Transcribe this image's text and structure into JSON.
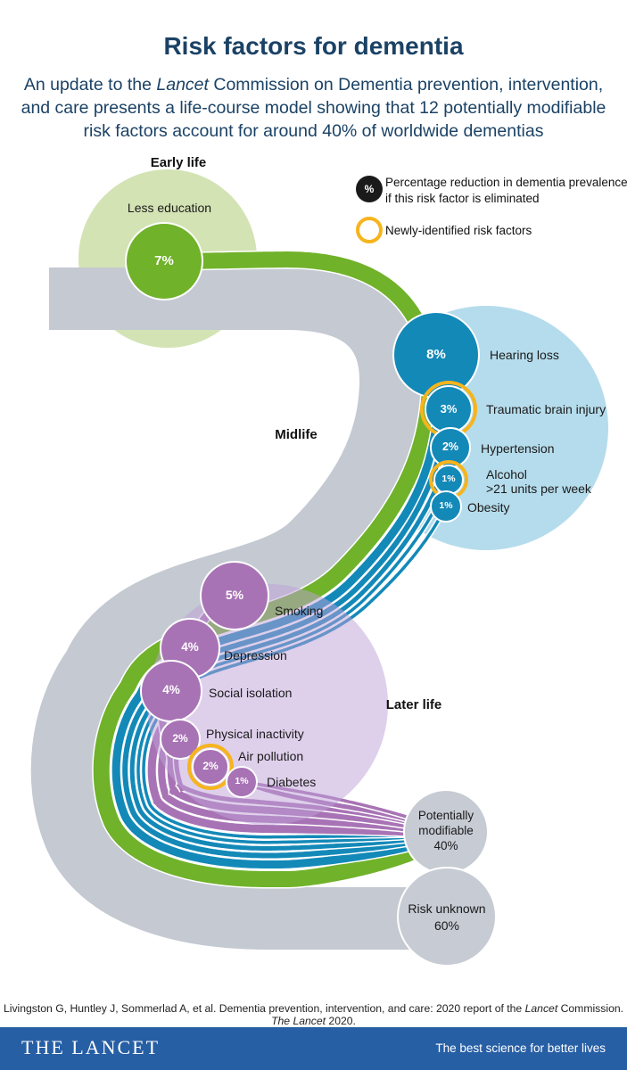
{
  "title": "Risk factors for dementia",
  "subtitle": {
    "l1a": "An update to the ",
    "l1b": "Lancet",
    "l1c": " Commission on Dementia prevention, intervention,",
    "l2": "and care presents a life-course model showing that 12 potentially modifiable",
    "l3": "risk factors account for around 40% of worldwide dementias"
  },
  "legend": {
    "badge_symbol": "%",
    "item1_line1": "Percentage reduction in dementia prevalence",
    "item1_line2": "if this risk factor is eliminated",
    "item2": "Newly-identified risk factors"
  },
  "stages": {
    "early": "Early life",
    "mid": "Midlife",
    "late": "Later life"
  },
  "factors": [
    {
      "id": "less-education",
      "stage": "Early life",
      "label": "Less education",
      "pct": "7%",
      "newly_identified": false
    },
    {
      "id": "hearing-loss",
      "stage": "Midlife",
      "label": "Hearing loss",
      "pct": "8%",
      "newly_identified": false
    },
    {
      "id": "traumatic-brain-injury",
      "stage": "Midlife",
      "label": "Traumatic brain injury",
      "pct": "3%",
      "newly_identified": true
    },
    {
      "id": "hypertension",
      "stage": "Midlife",
      "label": "Hypertension",
      "pct": "2%",
      "newly_identified": false
    },
    {
      "id": "alcohol",
      "stage": "Midlife",
      "label": "Alcohol",
      "label2": ">21 units per week",
      "pct": "1%",
      "newly_identified": true
    },
    {
      "id": "obesity",
      "stage": "Midlife",
      "label": "Obesity",
      "pct": "1%",
      "newly_identified": false
    },
    {
      "id": "smoking",
      "stage": "Later life",
      "label": "Smoking",
      "pct": "5%",
      "newly_identified": false
    },
    {
      "id": "depression",
      "stage": "Later life",
      "label": "Depression",
      "pct": "4%",
      "newly_identified": false
    },
    {
      "id": "social-isolation",
      "stage": "Later life",
      "label": "Social isolation",
      "pct": "4%",
      "newly_identified": false
    },
    {
      "id": "physical-inactivity",
      "stage": "Later life",
      "label": "Physical inactivity",
      "pct": "2%",
      "newly_identified": false
    },
    {
      "id": "air-pollution",
      "stage": "Later life",
      "label": "Air pollution",
      "pct": "2%",
      "newly_identified": true
    },
    {
      "id": "diabetes",
      "stage": "Later life",
      "label": "Diabetes",
      "pct": "1%",
      "newly_identified": false
    }
  ],
  "outcomes": [
    {
      "id": "potentially-modifiable",
      "line1": "Potentially",
      "line2": "modifiable",
      "pct": "40%"
    },
    {
      "id": "risk-unknown",
      "line1": "Risk unknown",
      "pct": "60%"
    }
  ],
  "citation": {
    "c1": "Livingston G, Huntley J, Sommerlad A, et al. Dementia prevention, intervention, and care: 2020 report of the ",
    "c2": "Lancet",
    "c3": " Commission. ",
    "c4": "The Lancet",
    "c5": " 2020."
  },
  "footer": {
    "brand": "THE LANCET",
    "tagline": "The best science for better lives"
  },
  "colors": {
    "navy": "#1b4265",
    "green": "#70b22a",
    "pale_green": "#d3e3b4",
    "blue": "#1389b8",
    "pale_blue": "#b5dcec",
    "purple": "#a873b5",
    "pale_purple_overlay": "rgba(190,160,215,0.5)",
    "gray_band": "#c4c9d2",
    "gray_circle": "#c6cbd4",
    "yellow_ring": "#f6b41d",
    "footer_blue": "#275fa5",
    "legend_black": "#1a1a1a"
  }
}
